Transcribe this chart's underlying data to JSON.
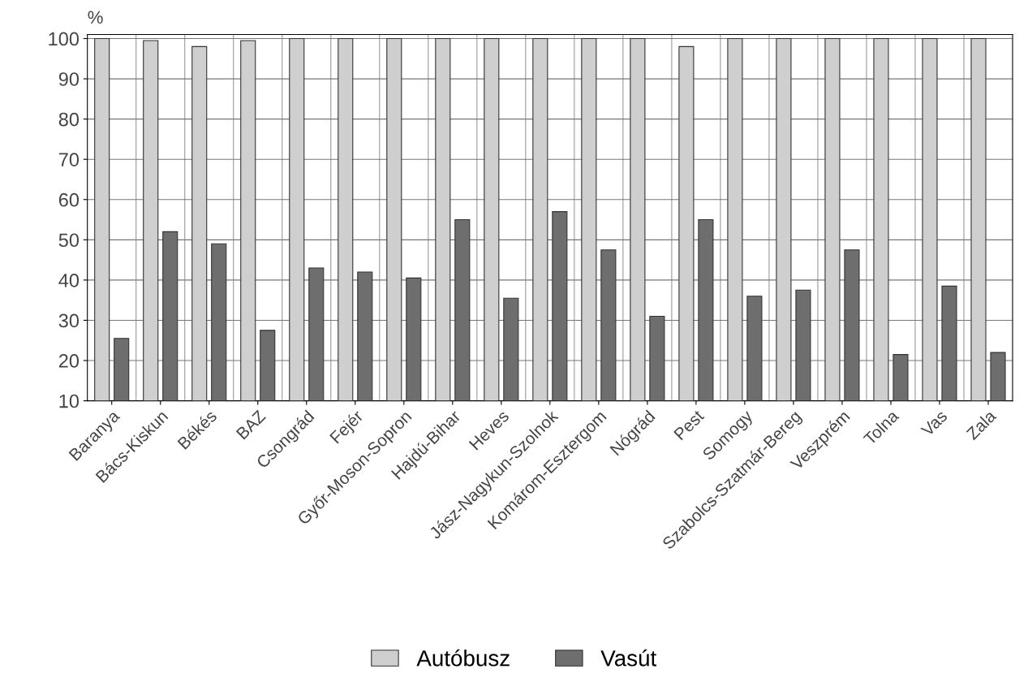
{
  "chart_data": {
    "type": "bar",
    "ylabel": "%",
    "categories": [
      "Baranya",
      "Bács-Kiskun",
      "Békés",
      "BAZ",
      "Csongrád",
      "Fejér",
      "Győr-Moson-Sopron",
      "Hajdú-Bihar",
      "Heves",
      "Jász-Nagykun-Szolnok",
      "Komárom-Esztergom",
      "Nógrád",
      "Pest",
      "Somogy",
      "Szabolcs-Szatmár-Bereg",
      "Veszprém",
      "Tolna",
      "Vas",
      "Zala"
    ],
    "series": [
      {
        "name": "Autóbusz",
        "color": "#cfcfcf",
        "values": [
          100,
          99.5,
          98,
          99.5,
          100,
          100,
          100,
          100,
          100,
          100,
          100,
          100,
          98,
          100,
          100,
          100,
          100,
          100,
          100
        ]
      },
      {
        "name": "Vasút",
        "color": "#6e6e6e",
        "values": [
          25.5,
          52,
          49,
          27.5,
          43,
          42,
          40.5,
          55,
          35.5,
          57,
          47.5,
          31,
          55,
          36,
          37.5,
          47.5,
          21.5,
          38.5,
          22
        ]
      }
    ],
    "ylim": [
      10,
      101
    ],
    "yticks": [
      10,
      20,
      30,
      40,
      50,
      60,
      70,
      80,
      90,
      100
    ],
    "grid": "y",
    "legend": "bottom"
  }
}
